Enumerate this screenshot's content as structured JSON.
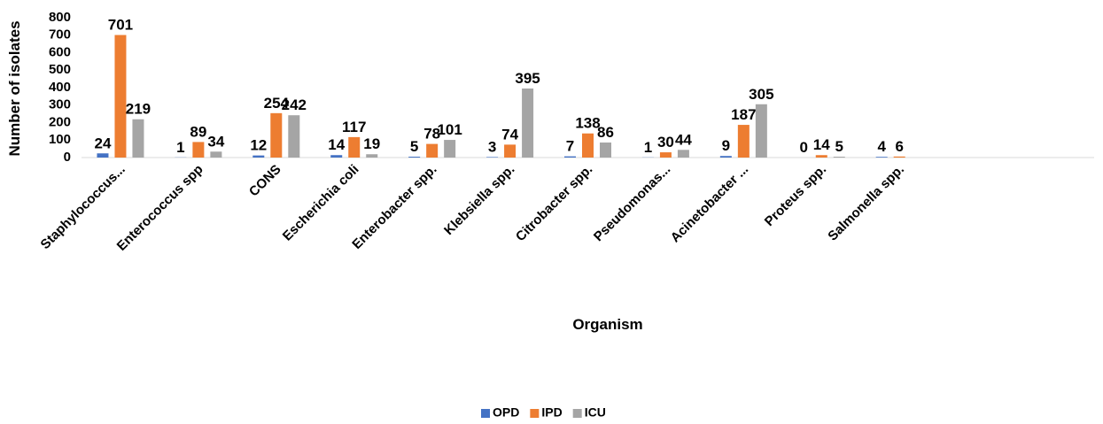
{
  "chart_data": {
    "type": "bar",
    "categories": [
      "Staphylococcus...",
      "Enterococcus spp",
      "CONS",
      "Escherichia coli",
      "Enterobacter spp.",
      "Klebsiella spp.",
      "Citrobacter spp.",
      "Pseudomonas...",
      "Acinetobacter ...",
      "Proteus spp.",
      "Salmonella spp.",
      null,
      null
    ],
    "series": [
      {
        "name": "OPD",
        "color": "#4472c4",
        "values": [
          24,
          1,
          12,
          14,
          5,
          3,
          7,
          1,
          9,
          0,
          4,
          null,
          null
        ]
      },
      {
        "name": "IPD",
        "color": "#ed7d31",
        "values": [
          701,
          89,
          254,
          117,
          78,
          74,
          138,
          30,
          187,
          14,
          6,
          null,
          null
        ]
      },
      {
        "name": "ICU",
        "color": "#a5a5a5",
        "values": [
          219,
          34,
          242,
          19,
          101,
          395,
          86,
          44,
          305,
          5,
          null,
          null,
          null
        ]
      }
    ],
    "ylim": [
      0,
      800
    ],
    "yticks": [
      0,
      100,
      200,
      300,
      400,
      500,
      600,
      700,
      800
    ],
    "y_label": "Number of isolates",
    "x_label": "Organism",
    "legend": "bottom"
  }
}
